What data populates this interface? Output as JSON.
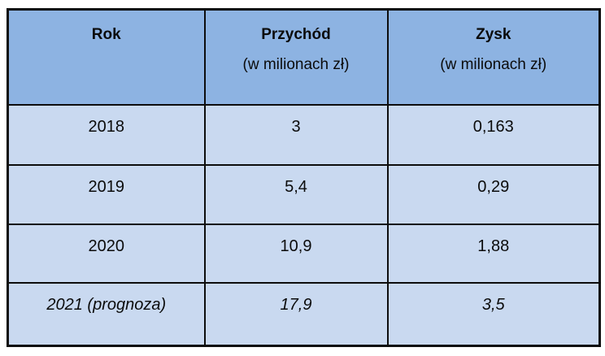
{
  "chart_data": {
    "type": "table",
    "title": "",
    "columns": [
      "Rok",
      "Przychód (w milionach zł)",
      "Zysk (w milionach zł)"
    ],
    "rows": [
      [
        "2018",
        "3",
        "0,163"
      ],
      [
        "2019",
        "5,4",
        "0,29"
      ],
      [
        "2020",
        "10,9",
        "1,88"
      ],
      [
        "2021 (prognoza)",
        "17,9",
        "3,5"
      ]
    ],
    "notes": "Last row is an italic forecast row; decimal commas (Polish locale); values in millions of zł"
  },
  "table": {
    "header": {
      "col1": {
        "title": "Rok",
        "subtitle": ""
      },
      "col2": {
        "title": "Przychód",
        "subtitle": "(w milionach zł)"
      },
      "col3": {
        "title": "Zysk",
        "subtitle": "(w milionach zł)"
      }
    },
    "rows": [
      {
        "rok": "2018",
        "przychod": "3",
        "zysk": "0,163"
      },
      {
        "rok": "2019",
        "przychod": "5,4",
        "zysk": "0,29"
      },
      {
        "rok": "2020",
        "przychod": "10,9",
        "zysk": "1,88"
      },
      {
        "rok": "2021 (prognoza)",
        "przychod": "17,9",
        "zysk": "3,5"
      }
    ]
  },
  "colors": {
    "header_bg": "#8db3e2",
    "row_bg": "#c9d9f0",
    "border": "#0d0d0d",
    "page_bg": "#ffffff"
  }
}
